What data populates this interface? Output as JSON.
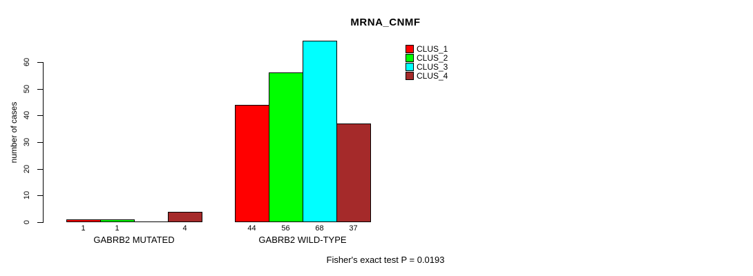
{
  "chart_data": {
    "type": "bar",
    "title": "MRNA_CNMF",
    "xlabel": "",
    "ylabel": "number of cases",
    "ylim": [
      0,
      60
    ],
    "yticks": [
      0,
      10,
      20,
      30,
      40,
      50,
      60
    ],
    "grid": false,
    "legend_position": "top-right",
    "categories": [
      "GABRB2 MUTATED",
      "GABRB2 WILD-TYPE"
    ],
    "series": [
      {
        "name": "CLUS_1",
        "color": "#FF0000",
        "values": [
          1,
          44
        ]
      },
      {
        "name": "CLUS_2",
        "color": "#00FF00",
        "values": [
          1,
          56
        ]
      },
      {
        "name": "CLUS_3",
        "color": "#00FFFF",
        "values": [
          0,
          68
        ]
      },
      {
        "name": "CLUS_4",
        "color": "#A52A2A",
        "values": [
          4,
          37
        ]
      }
    ],
    "bar_value_labels": [
      "1",
      "1",
      "4",
      "44",
      "56",
      "68",
      "37"
    ],
    "annotation": "Fisher's exact test P = 0.0193"
  }
}
